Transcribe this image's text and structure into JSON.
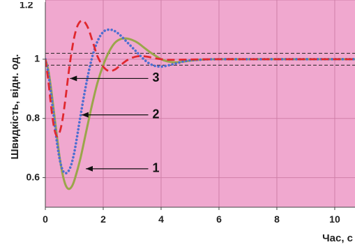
{
  "chart_data": {
    "type": "line",
    "title": "",
    "xlabel": "Час, с",
    "ylabel": "Швидкість, відн. од.",
    "xlim": [
      0,
      10.7
    ],
    "ylim": [
      0.5,
      1.2
    ],
    "x_ticks": [
      "0",
      "2",
      "4",
      "6",
      "8",
      "10"
    ],
    "y_ticks": [
      "0.6",
      "0.8",
      "1"
    ],
    "top_tick_partial": "1.2",
    "grid": true,
    "legend": "none",
    "plot_background": "#f0a8cf",
    "grid_color": "#cf7fa8",
    "tolerance_band": {
      "upper": 1.02,
      "lower": 0.98,
      "color": "#222222"
    },
    "series": [
      {
        "label": "1",
        "color": "#9aa64a",
        "style": "solid",
        "x": [
          0,
          0.1,
          0.2,
          0.3,
          0.4,
          0.5,
          0.6,
          0.7,
          0.8,
          0.9,
          1.0,
          1.2,
          1.4,
          1.6,
          1.8,
          2.0,
          2.2,
          2.4,
          2.6,
          2.8,
          3.0,
          3.2,
          3.4,
          3.6,
          3.8,
          4.0,
          4.2,
          4.4,
          4.6,
          4.8,
          5.0,
          5.5,
          6.0,
          7.0,
          8.0,
          9.0,
          10.0,
          10.7
        ],
        "y": [
          1.0,
          0.965,
          0.9,
          0.82,
          0.74,
          0.665,
          0.61,
          0.575,
          0.562,
          0.568,
          0.59,
          0.66,
          0.75,
          0.84,
          0.92,
          0.98,
          1.025,
          1.055,
          1.068,
          1.07,
          1.065,
          1.055,
          1.04,
          1.025,
          1.012,
          1.0,
          0.993,
          0.99,
          0.99,
          0.992,
          0.995,
          0.999,
          1.0,
          1.0,
          1.0,
          1.0,
          1.0,
          1.0
        ]
      },
      {
        "label": "2",
        "color": "#4d6fd1",
        "style": "dotted",
        "x": [
          0,
          0.1,
          0.2,
          0.3,
          0.4,
          0.5,
          0.6,
          0.7,
          0.8,
          0.9,
          1.0,
          1.1,
          1.2,
          1.4,
          1.6,
          1.8,
          2.0,
          2.2,
          2.4,
          2.6,
          2.8,
          3.0,
          3.2,
          3.4,
          3.6,
          3.8,
          4.0,
          4.2,
          4.4,
          4.6,
          4.8,
          5.0,
          5.5,
          6.0,
          7.0,
          8.0,
          9.0,
          10.0,
          10.7
        ],
        "y": [
          1.0,
          0.955,
          0.88,
          0.8,
          0.72,
          0.66,
          0.625,
          0.615,
          0.622,
          0.645,
          0.685,
          0.74,
          0.8,
          0.91,
          1.0,
          1.06,
          1.092,
          1.1,
          1.095,
          1.08,
          1.06,
          1.04,
          1.02,
          1.0,
          0.985,
          0.977,
          0.975,
          0.978,
          0.983,
          0.988,
          0.993,
          0.996,
          0.999,
          1.0,
          1.0,
          1.0,
          1.0,
          1.0,
          1.0
        ]
      },
      {
        "label": "3",
        "color": "#e0282f",
        "style": "dashed",
        "x": [
          0,
          0.1,
          0.2,
          0.3,
          0.4,
          0.5,
          0.6,
          0.7,
          0.8,
          0.9,
          1.0,
          1.1,
          1.2,
          1.3,
          1.4,
          1.5,
          1.6,
          1.7,
          1.8,
          2.0,
          2.2,
          2.4,
          2.6,
          2.8,
          3.0,
          3.2,
          3.4,
          3.6,
          3.8,
          4.0,
          4.2,
          4.5,
          5.0,
          6.0,
          7.0,
          8.0,
          9.0,
          10.0,
          10.7
        ],
        "y": [
          1.0,
          0.93,
          0.84,
          0.77,
          0.74,
          0.755,
          0.8,
          0.87,
          0.95,
          1.02,
          1.075,
          1.11,
          1.127,
          1.13,
          1.12,
          1.1,
          1.07,
          1.04,
          1.01,
          0.975,
          0.96,
          0.965,
          0.98,
          0.995,
          1.005,
          1.01,
          1.01,
          1.007,
          1.003,
          1.0,
          0.998,
          0.998,
          0.999,
          1.0,
          1.0,
          1.0,
          1.0,
          1.0,
          1.0
        ]
      }
    ],
    "annotations": [
      {
        "text": "3",
        "target_series": "3",
        "arrow_to": [
          0.85,
          0.935
        ],
        "label_at": [
          3.7,
          0.935
        ]
      },
      {
        "text": "2",
        "target_series": "2",
        "arrow_to": [
          1.25,
          0.812
        ],
        "label_at": [
          3.7,
          0.812
        ]
      },
      {
        "text": "1",
        "target_series": "1",
        "arrow_to": [
          1.4,
          0.63
        ],
        "label_at": [
          3.7,
          0.63
        ]
      }
    ]
  }
}
